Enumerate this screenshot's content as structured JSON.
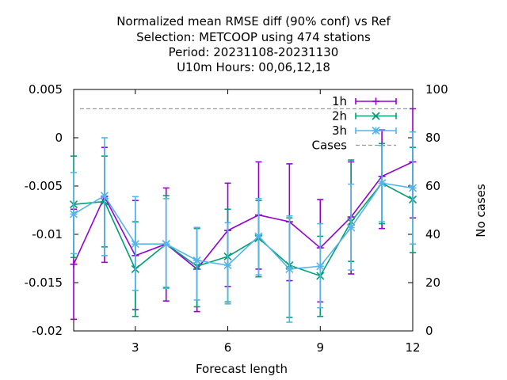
{
  "chart_data": {
    "type": "line",
    "title_lines": [
      "Normalized mean RMSE diff (90% conf) vs Ref",
      "Selection: METCOOP using   474 stations",
      "Period: 20231108-20231130",
      "U10m   Hours:  00,06,12,18"
    ],
    "xlabel": "Forecast length",
    "ylabel": "",
    "y2label": "No cases",
    "xlim": [
      1,
      12
    ],
    "ylim": [
      -0.02,
      0.005
    ],
    "y2lim": [
      0,
      100
    ],
    "xticks": [
      3,
      6,
      9,
      12
    ],
    "xtick_labels": [
      "3",
      "6",
      "9",
      "12"
    ],
    "yticks": [
      0.005,
      0,
      -0.005,
      -0.01,
      -0.015,
      -0.02
    ],
    "ytick_labels": [
      "0.005",
      "0",
      "-0.005",
      "-0.01",
      "-0.015",
      "-0.02"
    ],
    "y2ticks": [
      100,
      80,
      60,
      40,
      20,
      0
    ],
    "y2tick_labels": [
      "100",
      "80",
      "60",
      "40",
      "20",
      "0"
    ],
    "legend_position": "top-right",
    "series": [
      {
        "name": "1h",
        "color": "#9400d3",
        "marker": "plus",
        "x": [
          1,
          2,
          3,
          4,
          5,
          6,
          7,
          8,
          9,
          10,
          11,
          12
        ],
        "values": [
          -0.0131,
          -0.0061,
          -0.0122,
          -0.011,
          -0.0136,
          -0.0096,
          -0.008,
          -0.0087,
          -0.0114,
          -0.0082,
          -0.004,
          -0.0025
        ],
        "err_low": [
          -0.0188,
          -0.0129,
          -0.0178,
          -0.0169,
          -0.018,
          -0.0154,
          -0.0136,
          -0.0148,
          -0.017,
          -0.0141,
          -0.0094,
          -0.0083
        ],
        "err_high": [
          -0.0074,
          -0.001,
          -0.0065,
          -0.0052,
          -0.0093,
          -0.0047,
          -0.0025,
          -0.0027,
          -0.0064,
          -0.0025,
          0.0008,
          0.003
        ]
      },
      {
        "name": "2h",
        "color": "#009e73",
        "marker": "cross",
        "x": [
          1,
          2,
          3,
          4,
          5,
          6,
          7,
          8,
          9,
          10,
          11,
          12
        ],
        "values": [
          -0.0069,
          -0.0066,
          -0.0136,
          -0.011,
          -0.0133,
          -0.0123,
          -0.0104,
          -0.0132,
          -0.0143,
          -0.0087,
          -0.0047,
          -0.0064
        ],
        "err_low": [
          -0.0124,
          -0.0113,
          -0.0185,
          -0.0155,
          -0.0175,
          -0.017,
          -0.0144,
          -0.0186,
          -0.0185,
          -0.0128,
          -0.0089,
          -0.0119
        ],
        "err_high": [
          -0.0019,
          -0.0019,
          -0.0087,
          -0.006,
          -0.0094,
          -0.0074,
          -0.0065,
          -0.0083,
          -0.0102,
          -0.0023,
          -0.0006,
          -0.001
        ]
      },
      {
        "name": "3h",
        "color": "#56b4e9",
        "marker": "star",
        "x": [
          1,
          2,
          3,
          4,
          5,
          6,
          7,
          8,
          9,
          10,
          11,
          12
        ],
        "values": [
          -0.0079,
          -0.006,
          -0.011,
          -0.011,
          -0.0127,
          -0.0132,
          -0.0102,
          -0.0136,
          -0.0133,
          -0.0093,
          -0.0047,
          -0.0052
        ],
        "err_low": [
          -0.012,
          -0.0122,
          -0.0158,
          -0.0156,
          -0.0168,
          -0.0172,
          -0.0142,
          -0.0191,
          -0.0176,
          -0.0137,
          -0.0087,
          -0.011
        ],
        "err_high": [
          -0.0036,
          0.0,
          -0.0061,
          -0.0063,
          -0.0093,
          -0.0088,
          -0.0063,
          -0.0081,
          -0.0089,
          -0.0048,
          -0.0008,
          0.0006
        ]
      }
    ],
    "cases_line": {
      "name": "Cases",
      "color": "#999999",
      "value": 92
    }
  }
}
